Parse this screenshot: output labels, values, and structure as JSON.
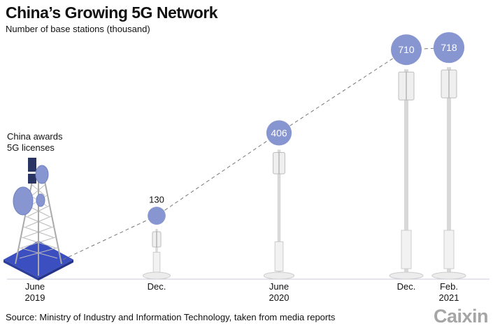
{
  "chart_data": {
    "type": "line",
    "title": "China’s Growing 5G Network",
    "subtitle": "Number of base stations (thousand)",
    "categories": [
      [
        "June",
        "2019"
      ],
      [
        "Dec.",
        ""
      ],
      [
        "June",
        "2020"
      ],
      [
        "Dec.",
        ""
      ],
      [
        "Feb.",
        "2021"
      ]
    ],
    "values": [
      null,
      130,
      406,
      710,
      718
    ],
    "value_labels": [
      "",
      "130",
      "406",
      "710",
      "718"
    ],
    "annotation": "China awards\n5G licenses",
    "colors": {
      "bubble": "#8796d0",
      "line": "#777777",
      "tower_base": "#3b4fc0",
      "pole": "#e4e4e4"
    },
    "grid": false
  },
  "source": "Source: Ministry of Industry and Information Technology, taken from media reports",
  "logo": "Caixin"
}
